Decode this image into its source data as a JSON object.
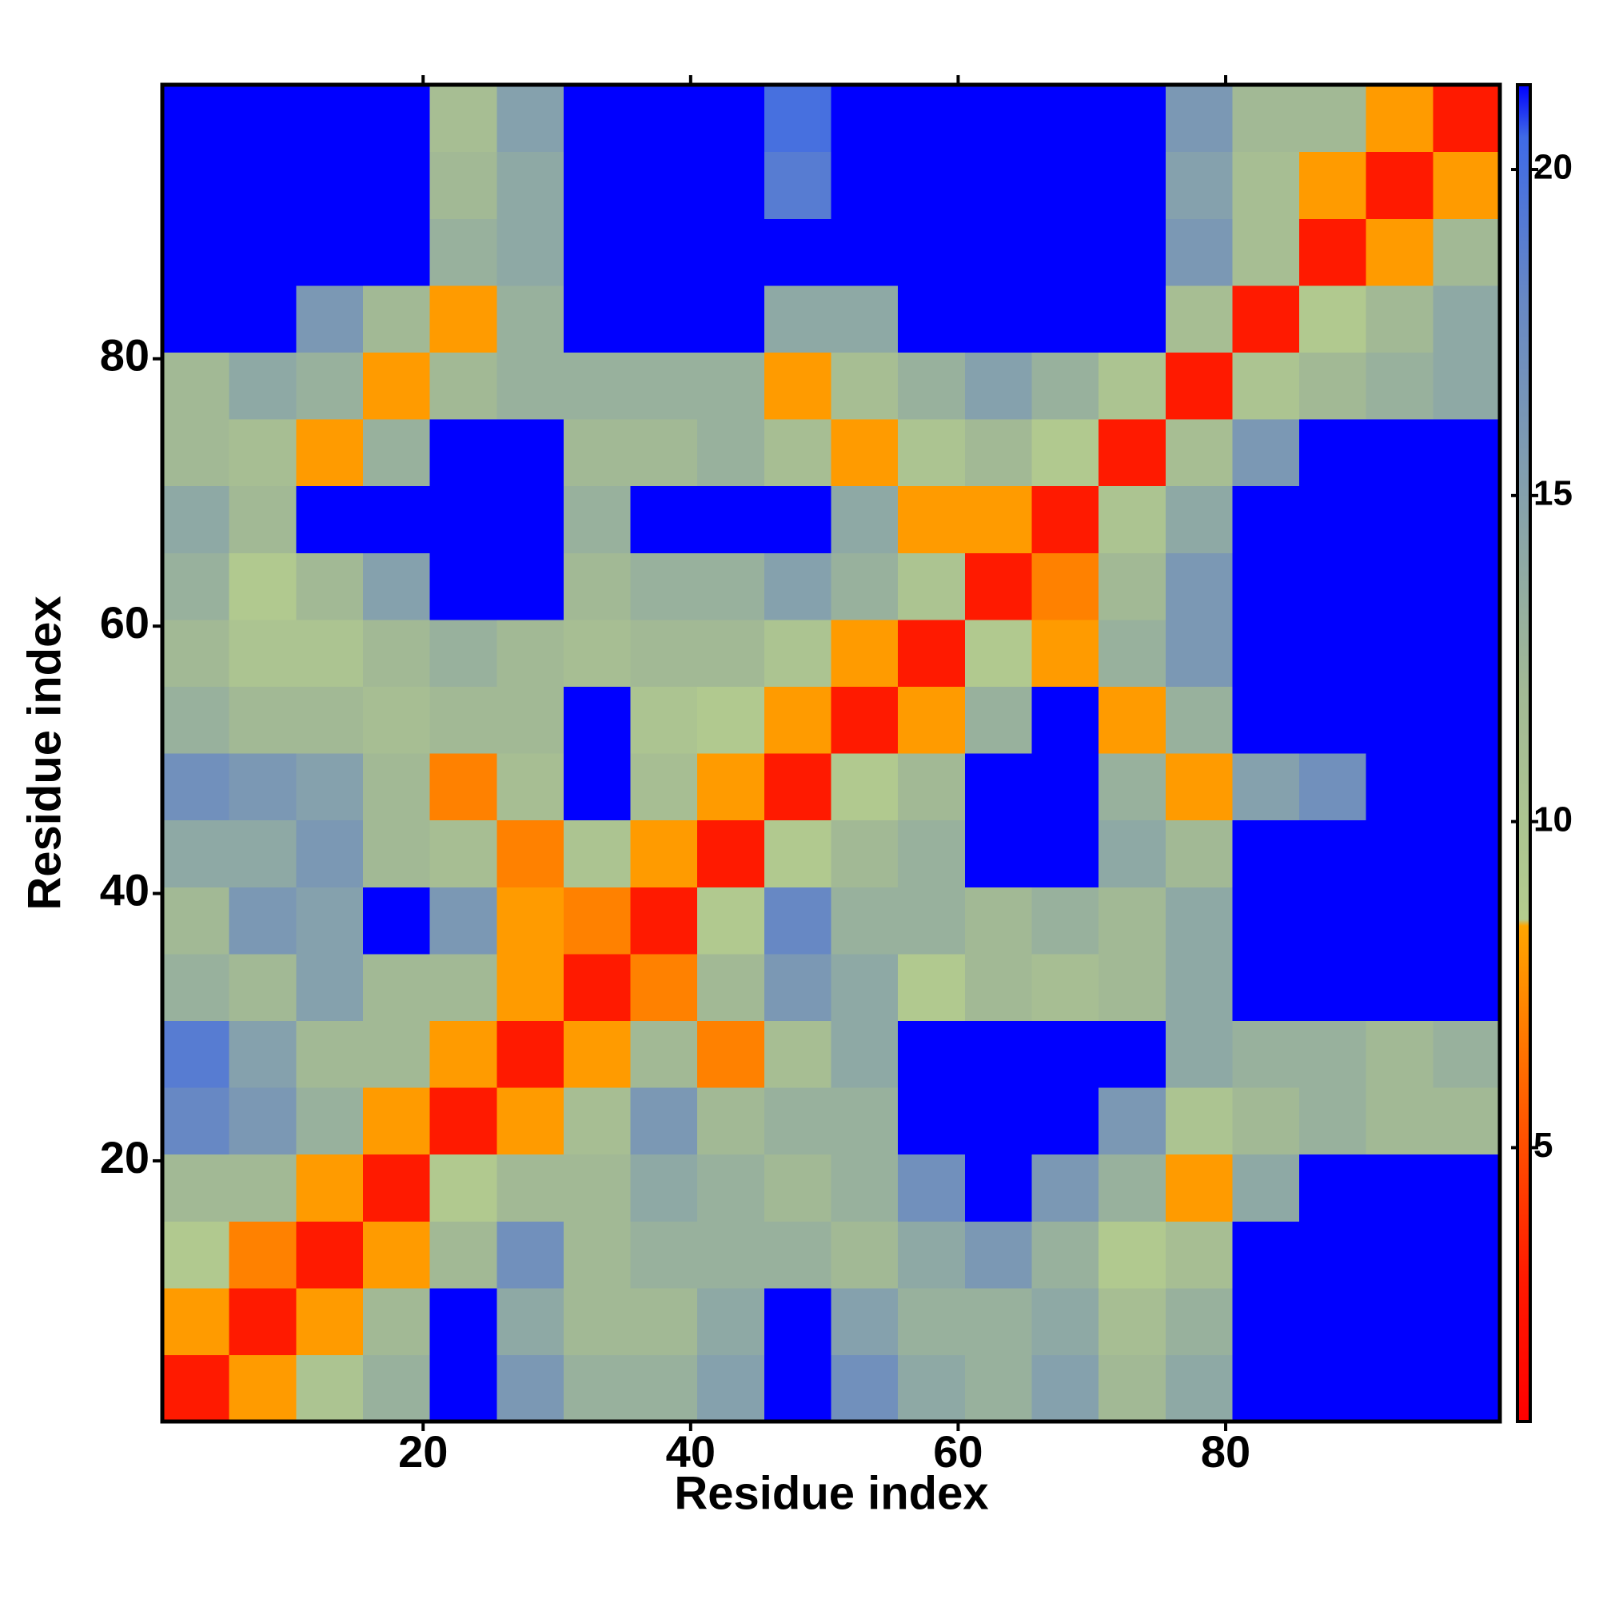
{
  "chart_data": {
    "type": "heatmap",
    "xlabel": "Residue index",
    "ylabel": "Residue index",
    "xbins": [
      0.5,
      5.5,
      10.5,
      15.5,
      20.5,
      25.5,
      30.5,
      35.5,
      40.5,
      45.5,
      50.5,
      55.5,
      60.5,
      65.5,
      70.5,
      75.5,
      80.5,
      85.5,
      90.5,
      95.5,
      100.5
    ],
    "ybins": [
      0.5,
      5.5,
      10.5,
      15.5,
      20.5,
      25.5,
      30.5,
      35.5,
      40.5,
      45.5,
      50.5,
      55.5,
      60.5,
      65.5,
      70.5,
      75.5,
      80.5,
      85.5,
      90.5,
      95.5,
      100.5
    ],
    "xlim": [
      0.5,
      100.5
    ],
    "ylim": [
      0.5,
      100.5
    ],
    "xticks": [
      20,
      40,
      60,
      80
    ],
    "yticks": [
      20,
      40,
      60,
      80
    ],
    "zlim": [
      0.8,
      21.3
    ],
    "zticks": [
      5,
      10,
      15,
      20
    ],
    "colorscale": [
      {
        "value": 0.8,
        "color": "#ff0000"
      },
      {
        "value": 3,
        "color": "#ff1a00"
      },
      {
        "value": 8.4,
        "color": "#ffa500"
      },
      {
        "value": 8.5,
        "color": "#b4cc8e"
      },
      {
        "value": 12,
        "color": "#a2b995"
      },
      {
        "value": 18,
        "color": "#6788c4"
      },
      {
        "value": 20.5,
        "color": "#3f6ae6"
      },
      {
        "value": 21.3,
        "color": "#0000ff"
      }
    ],
    "z": [
      [
        3,
        8,
        10,
        13,
        21.3,
        16,
        13,
        13,
        15,
        21.3,
        17,
        14,
        13,
        15,
        12,
        14,
        21.3,
        21.3,
        21.3,
        21.3
      ],
      [
        8,
        3,
        8,
        12,
        21.3,
        14,
        12,
        12,
        14,
        21.3,
        15,
        13,
        13,
        14,
        11,
        13,
        21.3,
        21.3,
        21.3,
        21.3
      ],
      [
        9,
        7,
        3,
        8,
        12,
        17,
        12,
        13,
        13,
        13,
        12,
        14,
        16,
        13,
        9,
        11,
        21.3,
        21.3,
        21.3,
        21.3
      ],
      [
        12,
        12,
        8,
        3,
        9,
        12,
        12,
        14,
        13,
        12,
        13,
        17,
        21.3,
        16,
        13,
        8,
        14,
        21.3,
        21.3,
        21.3
      ],
      [
        18,
        16,
        13,
        8,
        3,
        8,
        11,
        16,
        12,
        13,
        13,
        21.3,
        21.3,
        21.3,
        16,
        10,
        12,
        13,
        12,
        12
      ],
      [
        19,
        15,
        12,
        12,
        8,
        3,
        8,
        12,
        7,
        11,
        14,
        21.3,
        21.3,
        21.3,
        21.3,
        14,
        13,
        13,
        12,
        13
      ],
      [
        13,
        12,
        15,
        12,
        12,
        8,
        3,
        7,
        12,
        16,
        14,
        9,
        12,
        11,
        12,
        14,
        21.3,
        21.3,
        21.3,
        21.3
      ],
      [
        12,
        16,
        15,
        21.3,
        16,
        8,
        7,
        3,
        9,
        18,
        13,
        13,
        12,
        13,
        12,
        14,
        21.3,
        21.3,
        21.3,
        21.3
      ],
      [
        14,
        14,
        16,
        12,
        11,
        7,
        10,
        8,
        3,
        9,
        12,
        13,
        21.3,
        21.3,
        14,
        12,
        21.3,
        21.3,
        21.3,
        21.3
      ],
      [
        17,
        16,
        15,
        12,
        7,
        11,
        21.3,
        11,
        8,
        3,
        9,
        12,
        21.3,
        21.3,
        13,
        8,
        15,
        17,
        21.3,
        21.3
      ],
      [
        13,
        12,
        12,
        11,
        12,
        12,
        21.3,
        10,
        9,
        8,
        3,
        8,
        13,
        21.3,
        8,
        13,
        21.3,
        21.3,
        21.3,
        21.3
      ],
      [
        12,
        10,
        10,
        12,
        13,
        12,
        11,
        12,
        12,
        10,
        8,
        3,
        9,
        8,
        13,
        16,
        21.3,
        21.3,
        21.3,
        21.3
      ],
      [
        13,
        9,
        12,
        15,
        21.3,
        21.3,
        12,
        13,
        13,
        15,
        13,
        10,
        3,
        7,
        12,
        16,
        21.3,
        21.3,
        21.3,
        21.3
      ],
      [
        14,
        12,
        21.3,
        21.3,
        21.3,
        21.3,
        13,
        21.3,
        21.3,
        21.3,
        14,
        8,
        8,
        3,
        10,
        14,
        21.3,
        21.3,
        21.3,
        21.3
      ],
      [
        12,
        11,
        8,
        13,
        21.3,
        21.3,
        12,
        12,
        13,
        11,
        8,
        10,
        12,
        9,
        3,
        11,
        16,
        21.3,
        21.3,
        21.3
      ],
      [
        12,
        14,
        13,
        8,
        12,
        13,
        13,
        13,
        13,
        8,
        11,
        13,
        15,
        13,
        10,
        3,
        10,
        12,
        13,
        14
      ],
      [
        21.3,
        21.3,
        16,
        12,
        8,
        13,
        21.3,
        21.3,
        21.3,
        14,
        14,
        21.3,
        21.3,
        21.3,
        21.3,
        11,
        3,
        9,
        12,
        14
      ],
      [
        21.3,
        21.3,
        21.3,
        21.3,
        13,
        14,
        21.3,
        21.3,
        21.3,
        21.3,
        21.3,
        21.3,
        21.3,
        21.3,
        21.3,
        16,
        11,
        3,
        8,
        12
      ],
      [
        21.3,
        21.3,
        21.3,
        21.3,
        12,
        14,
        21.3,
        21.3,
        21.3,
        19,
        21.3,
        21.3,
        21.3,
        21.3,
        21.3,
        15,
        11,
        8,
        3,
        8
      ],
      [
        21.3,
        21.3,
        21.3,
        21.3,
        11,
        15,
        21.3,
        21.3,
        21.3,
        20,
        21.3,
        21.3,
        21.3,
        21.3,
        21.3,
        16,
        12,
        12,
        8,
        3
      ]
    ]
  }
}
